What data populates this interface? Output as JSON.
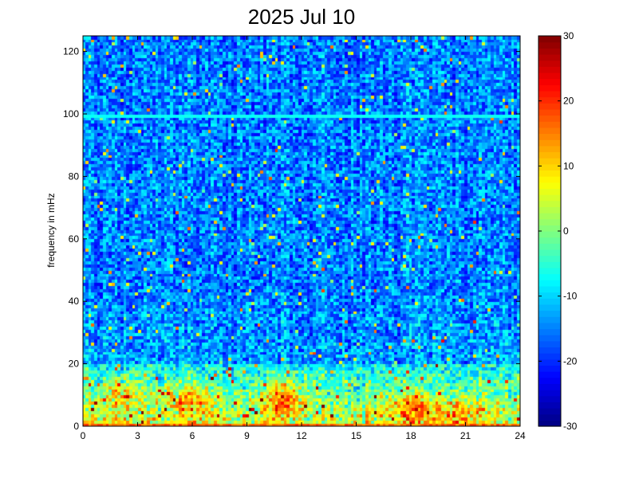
{
  "chart_data": {
    "type": "heatmap",
    "title": "2025 Jul 10",
    "xlabel": "",
    "ylabel": "frequency in mHz",
    "xlim": [
      0,
      24
    ],
    "ylim": [
      0,
      125
    ],
    "x_ticks": [
      0,
      3,
      6,
      9,
      12,
      15,
      18,
      21,
      24
    ],
    "y_ticks": [
      0,
      20,
      40,
      60,
      80,
      100,
      120
    ],
    "colorbar": {
      "colormap": "jet",
      "range": [
        -30,
        30
      ],
      "ticks": [
        -30,
        -20,
        -10,
        0,
        10,
        20,
        30
      ]
    },
    "grid": false,
    "features": {
      "background_level": -15,
      "horizontal_line": {
        "frequency": 99.5,
        "level": -7
      },
      "low_frequency_band": {
        "max_frequency": 20,
        "level": 8
      },
      "hot_spots": [
        {
          "x": 2.2,
          "y": 10,
          "level": 16
        },
        {
          "x": 5.9,
          "y": 8,
          "level": 20
        },
        {
          "x": 11.0,
          "y": 9,
          "level": 24
        },
        {
          "x": 18.2,
          "y": 6,
          "level": 20
        },
        {
          "x": 20.8,
          "y": 4,
          "level": 16
        }
      ]
    }
  }
}
